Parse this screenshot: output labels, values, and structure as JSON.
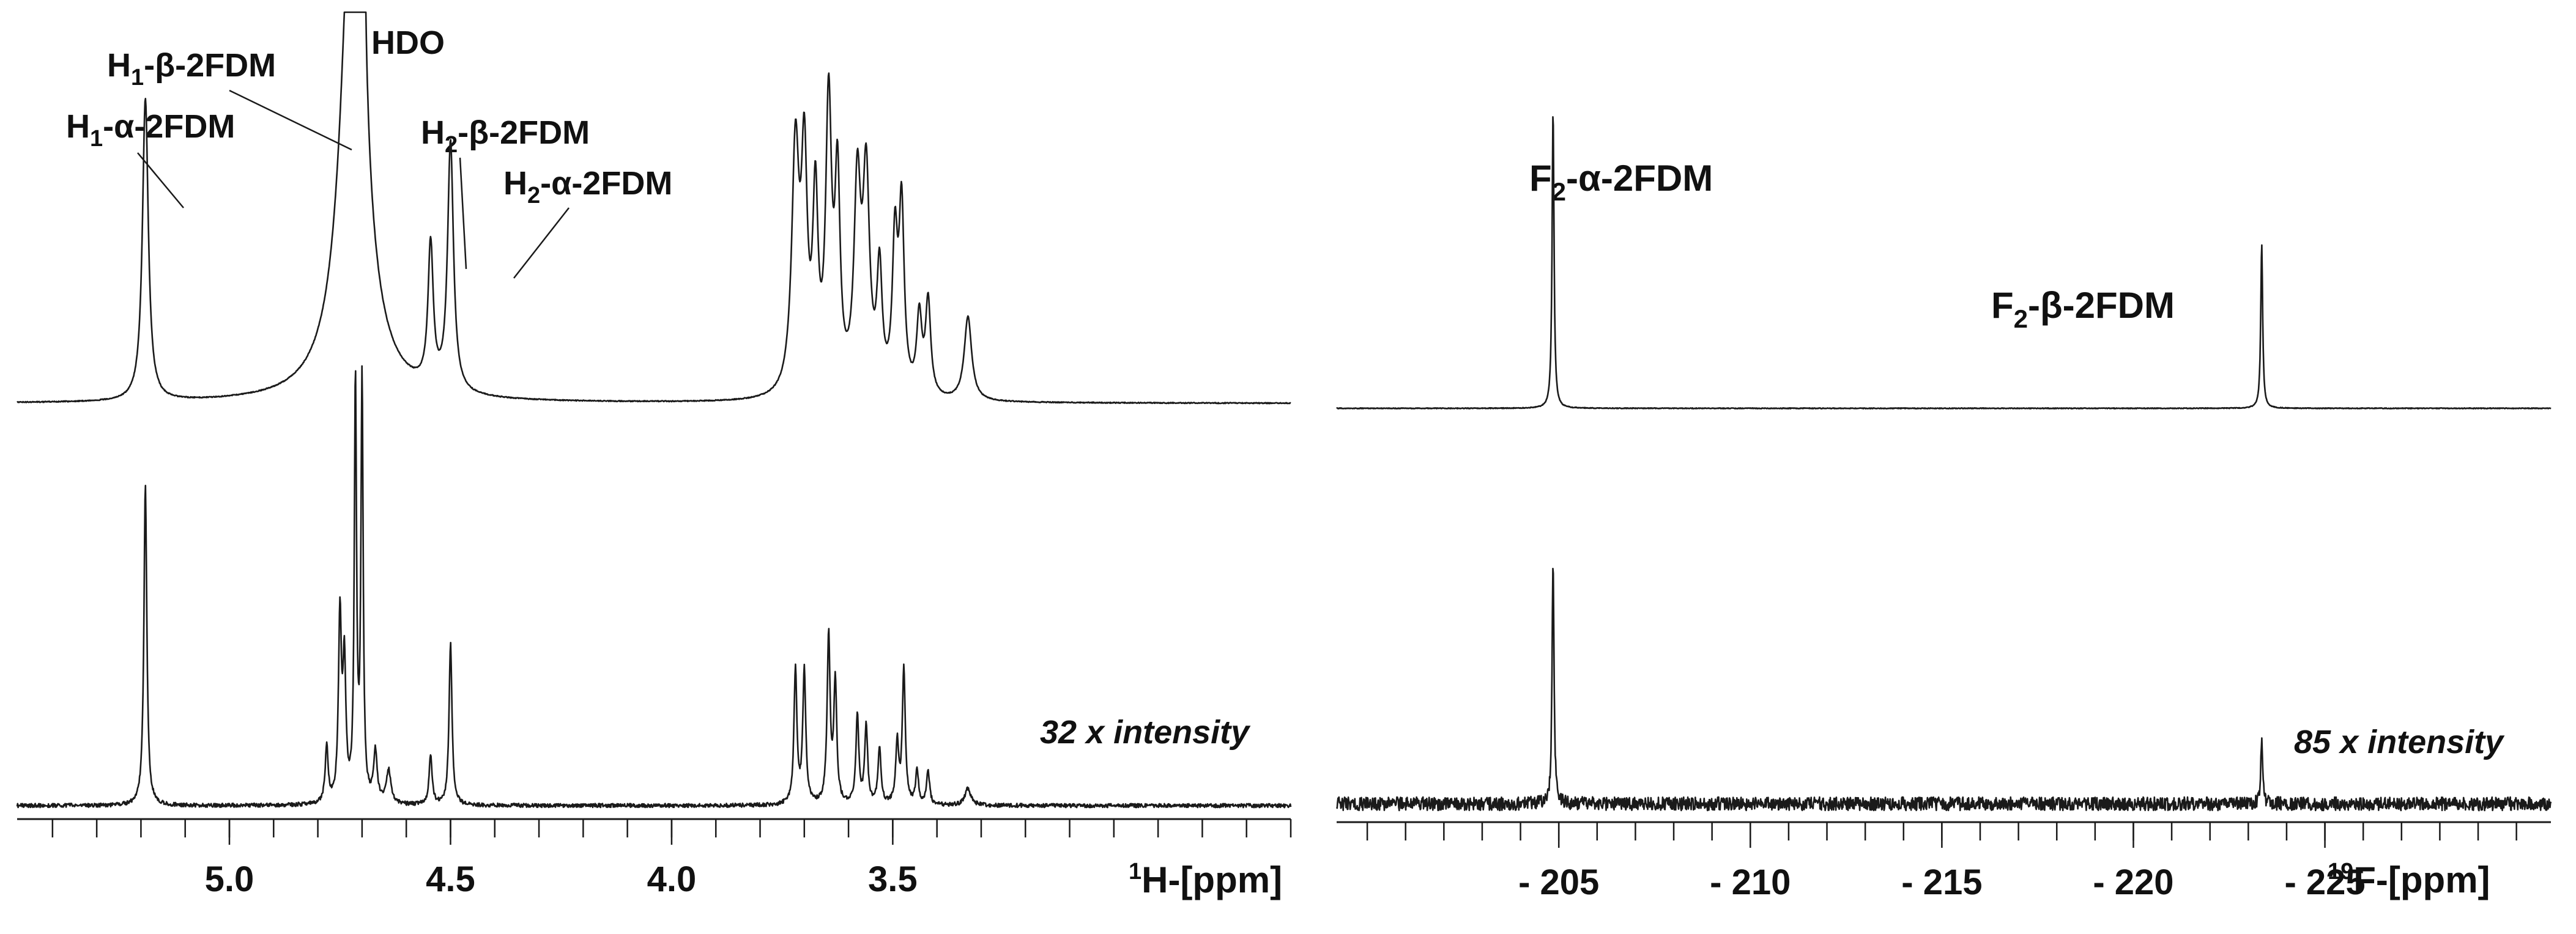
{
  "chart_data": [
    {
      "type": "line",
      "nucleus": "1H",
      "xlabel_sup": "1",
      "xlabel": "H-[ppm]",
      "x_reversed": true,
      "xlim": [
        5.48,
        2.6
      ],
      "xtick_labels": [
        "5.0",
        "4.5",
        "4.0",
        "3.5"
      ],
      "xtick_values": [
        5.0,
        4.5,
        4.0,
        3.5
      ],
      "minor_tick_step": 0.1,
      "series": [
        {
          "role": "upper spectrum",
          "peaks": [
            {
              "ppm": 5.19,
              "height": 0.9,
              "width": 0.008
            },
            {
              "ppm": 4.72,
              "height": 1.6,
              "width": 0.03
            },
            {
              "ppm": 4.7,
              "height": 1.6,
              "width": 0.004
            },
            {
              "ppm": 4.545,
              "height": 0.42,
              "width": 0.007
            },
            {
              "ppm": 4.5,
              "height": 0.74,
              "width": 0.008
            },
            {
              "ppm": 3.72,
              "height": 0.72,
              "width": 0.01
            },
            {
              "ppm": 3.7,
              "height": 0.65,
              "width": 0.008
            },
            {
              "ppm": 3.675,
              "height": 0.55,
              "width": 0.007
            },
            {
              "ppm": 3.645,
              "height": 0.84,
              "width": 0.008
            },
            {
              "ppm": 3.625,
              "height": 0.6,
              "width": 0.007
            },
            {
              "ppm": 3.58,
              "height": 0.6,
              "width": 0.009
            },
            {
              "ppm": 3.56,
              "height": 0.62,
              "width": 0.009
            },
            {
              "ppm": 3.53,
              "height": 0.35,
              "width": 0.007
            },
            {
              "ppm": 3.495,
              "height": 0.44,
              "width": 0.007
            },
            {
              "ppm": 3.48,
              "height": 0.54,
              "width": 0.007
            },
            {
              "ppm": 3.44,
              "height": 0.23,
              "width": 0.007
            },
            {
              "ppm": 3.42,
              "height": 0.28,
              "width": 0.007
            },
            {
              "ppm": 3.33,
              "height": 0.25,
              "width": 0.01
            }
          ]
        },
        {
          "role": "lower spectrum",
          "peaks": [
            {
              "ppm": 5.19,
              "height": 0.95,
              "width": 0.004
            },
            {
              "ppm": 4.78,
              "height": 0.17,
              "width": 0.004
            },
            {
              "ppm": 4.75,
              "height": 0.55,
              "width": 0.004
            },
            {
              "ppm": 4.74,
              "height": 0.4,
              "width": 0.004
            },
            {
              "ppm": 4.715,
              "height": 1.25,
              "width": 0.003
            },
            {
              "ppm": 4.7,
              "height": 1.25,
              "width": 0.003
            },
            {
              "ppm": 4.67,
              "height": 0.15,
              "width": 0.005
            },
            {
              "ppm": 4.64,
              "height": 0.1,
              "width": 0.006
            },
            {
              "ppm": 4.545,
              "height": 0.15,
              "width": 0.004
            },
            {
              "ppm": 4.5,
              "height": 0.48,
              "width": 0.004
            },
            {
              "ppm": 3.72,
              "height": 0.4,
              "width": 0.004
            },
            {
              "ppm": 3.7,
              "height": 0.4,
              "width": 0.004
            },
            {
              "ppm": 3.645,
              "height": 0.5,
              "width": 0.004
            },
            {
              "ppm": 3.63,
              "height": 0.36,
              "width": 0.004
            },
            {
              "ppm": 3.58,
              "height": 0.26,
              "width": 0.004
            },
            {
              "ppm": 3.56,
              "height": 0.23,
              "width": 0.004
            },
            {
              "ppm": 3.53,
              "height": 0.17,
              "width": 0.004
            },
            {
              "ppm": 3.49,
              "height": 0.18,
              "width": 0.004
            },
            {
              "ppm": 3.475,
              "height": 0.4,
              "width": 0.004
            },
            {
              "ppm": 3.445,
              "height": 0.1,
              "width": 0.004
            },
            {
              "ppm": 3.42,
              "height": 0.1,
              "width": 0.004
            },
            {
              "ppm": 3.33,
              "height": 0.05,
              "width": 0.008
            }
          ]
        }
      ],
      "annotations": [
        {
          "main": "H",
          "sub": "1",
          "rest": "-α-2FDM"
        },
        {
          "main": "H",
          "sub": "1",
          "rest": "-β-2FDM"
        },
        {
          "main": "HDO",
          "sub": "",
          "rest": ""
        },
        {
          "main": "H",
          "sub": "2",
          "rest": "-β-2FDM"
        },
        {
          "main": "H",
          "sub": "2",
          "rest": "-α-2FDM"
        }
      ],
      "scale_note": "32 x intensity"
    },
    {
      "type": "line",
      "nucleus": "19F",
      "xlabel_sup": "19",
      "xlabel": "F-[ppm]",
      "x_reversed": true,
      "xlim": [
        -199.2,
        -230.9
      ],
      "xtick_labels": [
        "- 205",
        "- 210",
        "- 215",
        "- 220",
        "- 225"
      ],
      "xtick_values": [
        -205,
        -210,
        -215,
        -220,
        -225
      ],
      "minor_tick_step": 1,
      "series": [
        {
          "role": "upper spectrum",
          "peaks": [
            {
              "ppm": -204.85,
              "height": 1.0,
              "width": 0.03
            },
            {
              "ppm": -223.35,
              "height": 0.55,
              "width": 0.03
            }
          ]
        },
        {
          "role": "lower spectrum",
          "peaks": [
            {
              "ppm": -204.85,
              "height": 0.92,
              "width": 0.03
            },
            {
              "ppm": -223.35,
              "height": 0.23,
              "width": 0.03
            }
          ]
        }
      ],
      "annotations": [
        {
          "main": "F",
          "sub": "2",
          "rest": "-α-2FDM"
        },
        {
          "main": "F",
          "sub": "2",
          "rest": "-β-2FDM"
        }
      ],
      "scale_note": "85 x intensity"
    }
  ]
}
